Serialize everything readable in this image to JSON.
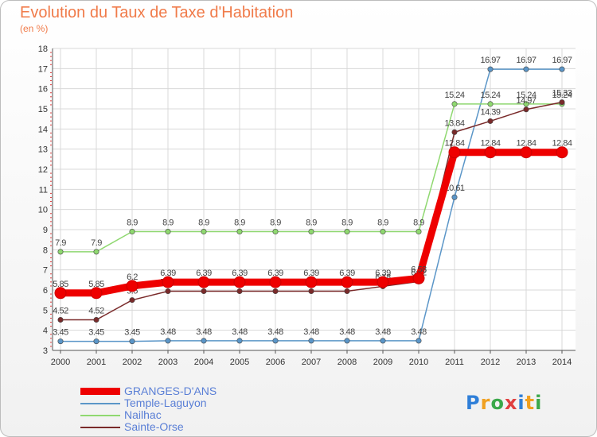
{
  "chart_data": {
    "type": "line",
    "title": "Evolution du Taux de Taxe d'Habitation",
    "subtitle": "(en %)",
    "xlabel": "",
    "ylabel": "",
    "x": [
      "2000",
      "2001",
      "2002",
      "2003",
      "2004",
      "2005",
      "2006",
      "2007",
      "2008",
      "2009",
      "2010",
      "2011",
      "2012",
      "2013",
      "2014"
    ],
    "ylim": [
      3,
      18
    ],
    "yticks": [
      "3",
      "4",
      "5",
      "6",
      "7",
      "8",
      "9",
      "10",
      "11",
      "12",
      "13",
      "14",
      "15",
      "16",
      "17",
      "18"
    ],
    "grid": true,
    "legend_position": "bottom-left",
    "series": [
      {
        "name": "GRANGES-D'ANS",
        "color": "#ee0000",
        "values": [
          5.85,
          5.85,
          6.2,
          6.39,
          6.39,
          6.39,
          6.39,
          6.39,
          6.39,
          6.39,
          6.58,
          12.84,
          12.84,
          12.84,
          12.84
        ],
        "labels": [
          "5.85",
          "5.85",
          "6.2",
          "6.39",
          "6.39",
          "6.39",
          "6.39",
          "6.39",
          "6.39",
          "6.39",
          "6.58",
          "12.84",
          "12.84",
          "12.84",
          "12.84"
        ]
      },
      {
        "name": "Temple-Laguyon",
        "color": "#5b96c8",
        "values": [
          3.45,
          3.45,
          3.45,
          3.48,
          3.48,
          3.48,
          3.48,
          3.48,
          3.48,
          3.48,
          3.48,
          10.61,
          16.97,
          16.97,
          16.97
        ],
        "labels": [
          "3.45",
          "3.45",
          "3.45",
          "3.48",
          "3.48",
          "3.48",
          "3.48",
          "3.48",
          "3.48",
          "3.48",
          "3.48",
          "10.61",
          "16.97",
          "16.97",
          "16.97"
        ]
      },
      {
        "name": "Nailhac",
        "color": "#8fd870",
        "values": [
          7.9,
          7.9,
          8.9,
          8.9,
          8.9,
          8.9,
          8.9,
          8.9,
          8.9,
          8.9,
          8.9,
          15.24,
          15.24,
          15.24,
          15.24
        ],
        "labels": [
          "7.9",
          "7.9",
          "8.9",
          "8.9",
          "8.9",
          "8.9",
          "8.9",
          "8.9",
          "8.9",
          "8.9",
          "8.9",
          "15.24",
          "15.24",
          "15.24",
          "15.24"
        ]
      },
      {
        "name": "Sainte-Orse",
        "color": "#7a2a2a",
        "values": [
          4.52,
          4.52,
          5.5,
          5.94,
          5.94,
          5.94,
          5.94,
          5.94,
          5.94,
          6.18,
          6.42,
          13.84,
          14.39,
          14.97,
          15.33
        ],
        "labels": [
          "4.52",
          "4.52",
          "5.5",
          "5.94",
          "5.94",
          "5.94",
          "5.94",
          "5.94",
          "5.94",
          "6.18",
          "6.42",
          "13.84",
          "14.39",
          "14.97",
          "15.33"
        ]
      }
    ]
  },
  "logo": {
    "letters": [
      "P",
      "r",
      "o",
      "x",
      "i",
      "t",
      "i"
    ],
    "colors": [
      "#2f7fd8",
      "#f0a020",
      "#3aa84a",
      "#e04040",
      "#2f7fd8",
      "#f0a020",
      "#3aa84a"
    ]
  }
}
